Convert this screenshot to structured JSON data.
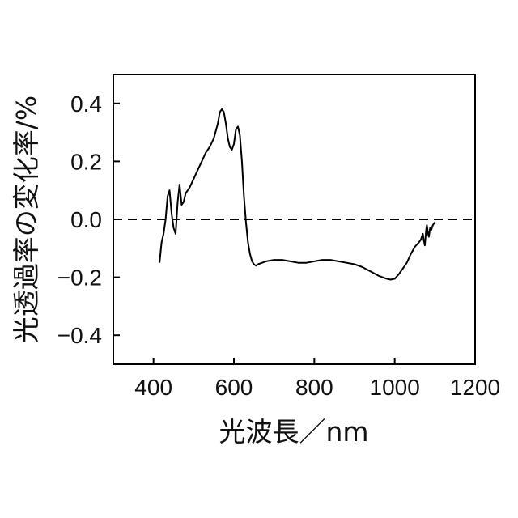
{
  "chart_data": {
    "type": "line",
    "xlabel": "光波長／nm",
    "ylabel": "光透過率の変化率/%",
    "xlim": [
      300,
      1200
    ],
    "ylim": [
      -0.5,
      0.5
    ],
    "xticks": [
      400,
      600,
      800,
      1000,
      1200
    ],
    "xtick_labels": [
      "400",
      "600",
      "800",
      "1000",
      "1200"
    ],
    "yticks": [
      0.4,
      0.2,
      0.0,
      -0.2,
      -0.4
    ],
    "ytick_labels": [
      "0.4",
      "0.2",
      "0.0",
      "−0.2",
      "−0.4"
    ],
    "grid": false,
    "reference_line": {
      "y": 0.0,
      "style": "dashed"
    },
    "series": [
      {
        "color": "#000000",
        "x": [
          415,
          420,
          425,
          430,
          435,
          440,
          445,
          450,
          455,
          460,
          465,
          470,
          475,
          480,
          490,
          500,
          510,
          520,
          530,
          540,
          550,
          560,
          565,
          570,
          575,
          580,
          585,
          590,
          595,
          600,
          605,
          610,
          615,
          620,
          625,
          630,
          635,
          640,
          645,
          650,
          655,
          660,
          670,
          680,
          700,
          720,
          740,
          760,
          780,
          800,
          820,
          840,
          860,
          880,
          900,
          920,
          940,
          960,
          980,
          990,
          1000,
          1010,
          1020,
          1030,
          1040,
          1050,
          1060,
          1065,
          1070,
          1072,
          1075,
          1078,
          1080,
          1083,
          1085,
          1088,
          1090,
          1095,
          1100
        ],
        "y": [
          -0.15,
          -0.08,
          -0.05,
          0.0,
          0.08,
          0.1,
          0.02,
          -0.03,
          -0.05,
          0.06,
          0.12,
          0.05,
          0.06,
          0.09,
          0.11,
          0.14,
          0.17,
          0.2,
          0.23,
          0.25,
          0.28,
          0.33,
          0.37,
          0.38,
          0.37,
          0.33,
          0.28,
          0.25,
          0.24,
          0.26,
          0.31,
          0.32,
          0.29,
          0.2,
          0.08,
          -0.01,
          -0.08,
          -0.12,
          -0.145,
          -0.155,
          -0.16,
          -0.155,
          -0.15,
          -0.145,
          -0.14,
          -0.14,
          -0.145,
          -0.15,
          -0.15,
          -0.145,
          -0.14,
          -0.14,
          -0.145,
          -0.15,
          -0.155,
          -0.165,
          -0.18,
          -0.195,
          -0.205,
          -0.208,
          -0.205,
          -0.19,
          -0.17,
          -0.15,
          -0.12,
          -0.095,
          -0.08,
          -0.07,
          -0.05,
          -0.07,
          -0.09,
          -0.04,
          -0.02,
          -0.05,
          -0.06,
          -0.03,
          -0.04,
          -0.02,
          -0.01
        ]
      }
    ]
  }
}
